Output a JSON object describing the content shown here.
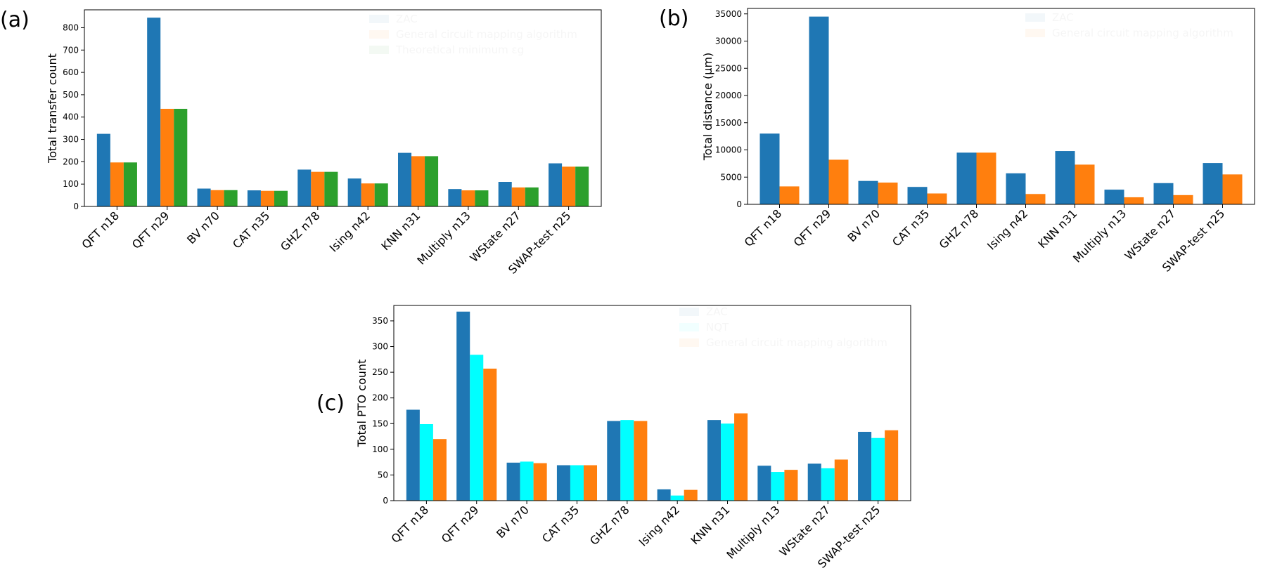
{
  "chart_data": [
    {
      "panel": "(a)",
      "type": "bar",
      "ylabel": "Total transfer count",
      "ylim": [
        0,
        880
      ],
      "yticks": [
        0,
        100,
        200,
        300,
        400,
        500,
        600,
        700,
        800
      ],
      "legend_position": "upper-center",
      "categories": [
        "QFT n18",
        "QFT n29",
        "BV n70",
        "CAT n35",
        "GHZ n78",
        "Ising n42",
        "KNN n31",
        "Multiply n13",
        "WState n27",
        "SWAP-test n25"
      ],
      "series": [
        {
          "name": "ZAC",
          "color": "#1f77b4",
          "values": [
            325,
            845,
            80,
            72,
            165,
            125,
            240,
            78,
            110,
            193
          ]
        },
        {
          "name": "General circuit mapping algorithm",
          "color": "#ff7f0e",
          "values": [
            197,
            437,
            73,
            70,
            155,
            103,
            225,
            72,
            85,
            178
          ]
        },
        {
          "name": "Theoretical minimum εg",
          "color": "#2ca02c",
          "values": [
            197,
            437,
            73,
            70,
            155,
            103,
            225,
            72,
            85,
            178
          ]
        }
      ]
    },
    {
      "panel": "(b)",
      "type": "bar",
      "ylabel": "Total distance (μm)",
      "ylim": [
        0,
        36000
      ],
      "yticks": [
        0,
        5000,
        10000,
        15000,
        20000,
        25000,
        30000,
        35000
      ],
      "legend_position": "upper-right",
      "categories": [
        "QFT n18",
        "QFT n29",
        "BV n70",
        "CAT n35",
        "GHZ n78",
        "Ising n42",
        "KNN n31",
        "Multiply n13",
        "WState n27",
        "SWAP-test n25"
      ],
      "series": [
        {
          "name": "ZAC",
          "color": "#1f77b4",
          "values": [
            13000,
            34500,
            4300,
            3200,
            9500,
            5700,
            9800,
            2700,
            3900,
            7600
          ]
        },
        {
          "name": "General circuit mapping algorithm",
          "color": "#ff7f0e",
          "values": [
            3300,
            8200,
            4000,
            2000,
            9500,
            1900,
            7300,
            1300,
            1700,
            5500
          ]
        }
      ]
    },
    {
      "panel": "(c)",
      "type": "bar",
      "ylabel": "Total PTO count",
      "ylim": [
        0,
        380
      ],
      "yticks": [
        0,
        50,
        100,
        150,
        200,
        250,
        300,
        350
      ],
      "legend_position": "upper-center",
      "categories": [
        "QFT n18",
        "QFT n29",
        "BV n70",
        "CAT n35",
        "GHZ n78",
        "Ising n42",
        "KNN n31",
        "Multiply n13",
        "WState n27",
        "SWAP-test n25"
      ],
      "series": [
        {
          "name": "ZAC",
          "color": "#1f77b4",
          "values": [
            177,
            368,
            74,
            69,
            155,
            22,
            157,
            68,
            72,
            134
          ]
        },
        {
          "name": "NQT",
          "color": "#00ffff",
          "values": [
            149,
            284,
            76,
            69,
            157,
            10,
            150,
            56,
            63,
            122
          ]
        },
        {
          "name": "General circuit mapping algorithm",
          "color": "#ff7f0e",
          "values": [
            120,
            257,
            73,
            69,
            155,
            21,
            170,
            60,
            80,
            137
          ]
        }
      ]
    }
  ]
}
